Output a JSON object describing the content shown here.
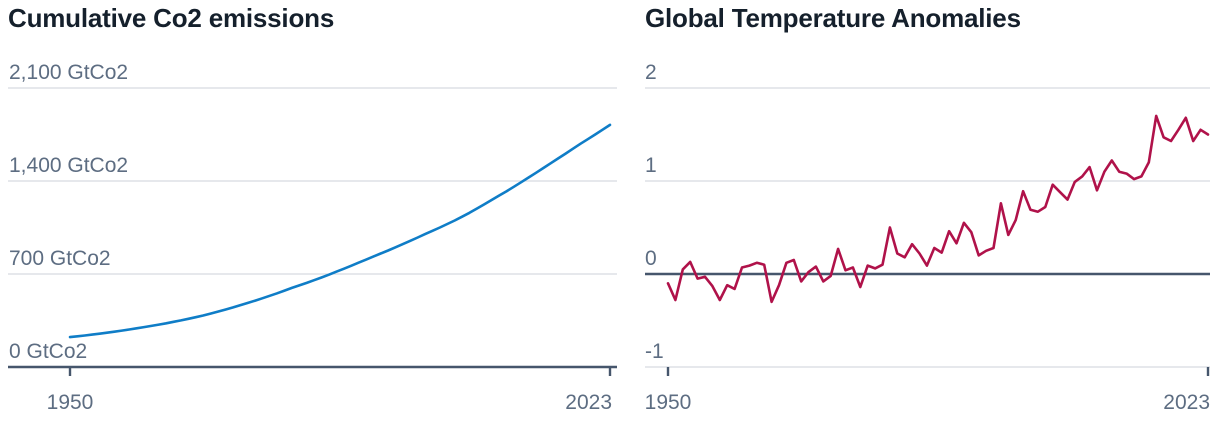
{
  "figure": {
    "background": "#ffffff"
  },
  "chart_data": [
    {
      "type": "line",
      "title": "Cumulative Co2 emissions",
      "xlabel": "",
      "ylabel": "GtCo2",
      "line_color": "#0f7dc7",
      "grid": "horizontal",
      "legend": "none",
      "xlim": [
        1950,
        2023
      ],
      "ylim": [
        0,
        2100
      ],
      "baseline": 0,
      "y_ticks": {
        "values": [
          2100,
          1400,
          700,
          0
        ],
        "labels": [
          "2,100 GtCo2",
          "1,400 GtCo2",
          "700 GtCo2",
          "0 GtCo2"
        ]
      },
      "x_ticks": {
        "values": [
          1950,
          2023
        ],
        "labels": [
          "1950",
          "2023"
        ]
      },
      "years": [
        1950,
        1951,
        1952,
        1953,
        1954,
        1955,
        1956,
        1957,
        1958,
        1959,
        1960,
        1961,
        1962,
        1963,
        1964,
        1965,
        1966,
        1967,
        1968,
        1969,
        1970,
        1971,
        1972,
        1973,
        1974,
        1975,
        1976,
        1977,
        1978,
        1979,
        1980,
        1981,
        1982,
        1983,
        1984,
        1985,
        1986,
        1987,
        1988,
        1989,
        1990,
        1991,
        1992,
        1993,
        1994,
        1995,
        1996,
        1997,
        1998,
        1999,
        2000,
        2001,
        2002,
        2003,
        2004,
        2005,
        2006,
        2007,
        2008,
        2009,
        2010,
        2011,
        2012,
        2013,
        2014,
        2015,
        2016,
        2017,
        2018,
        2019,
        2020,
        2021,
        2022,
        2023
      ],
      "values": [
        225,
        231,
        237,
        244,
        251,
        258,
        266,
        274,
        282,
        291,
        300,
        309,
        319,
        329,
        340,
        351,
        363,
        375,
        388,
        402,
        417,
        432,
        448,
        465,
        482,
        499,
        517,
        536,
        555,
        575,
        595,
        614,
        633,
        653,
        674,
        695,
        717,
        739,
        762,
        785,
        808,
        831,
        854,
        877,
        901,
        925,
        950,
        975,
        1000,
        1025,
        1050,
        1076,
        1103,
        1131,
        1161,
        1192,
        1224,
        1257,
        1290,
        1322,
        1356,
        1391,
        1426,
        1462,
        1498,
        1534,
        1570,
        1606,
        1643,
        1680,
        1715,
        1750,
        1786,
        1822
      ]
    },
    {
      "type": "line",
      "title": "Global Temperature Anomalies",
      "xlabel": "",
      "ylabel": "",
      "line_color": "#b0124a",
      "grid": "horizontal",
      "legend": "none",
      "xlim": [
        1950,
        2023
      ],
      "ylim": [
        -1,
        2
      ],
      "baseline": 0,
      "y_ticks": {
        "values": [
          2,
          1,
          0,
          -1
        ],
        "labels": [
          "2",
          "1",
          "0",
          "-1"
        ]
      },
      "x_ticks": {
        "values": [
          1950,
          2023
        ],
        "labels": [
          "1950",
          "2023"
        ]
      },
      "years": [
        1950,
        1951,
        1952,
        1953,
        1954,
        1955,
        1956,
        1957,
        1958,
        1959,
        1960,
        1961,
        1962,
        1963,
        1964,
        1965,
        1966,
        1967,
        1968,
        1969,
        1970,
        1971,
        1972,
        1973,
        1974,
        1975,
        1976,
        1977,
        1978,
        1979,
        1980,
        1981,
        1982,
        1983,
        1984,
        1985,
        1986,
        1987,
        1988,
        1989,
        1990,
        1991,
        1992,
        1993,
        1994,
        1995,
        1996,
        1997,
        1998,
        1999,
        2000,
        2001,
        2002,
        2003,
        2004,
        2005,
        2006,
        2007,
        2008,
        2009,
        2010,
        2011,
        2012,
        2013,
        2014,
        2015,
        2016,
        2017,
        2018,
        2019,
        2020,
        2021,
        2022,
        2023
      ],
      "values": [
        -0.1,
        -0.28,
        0.05,
        0.13,
        -0.05,
        -0.03,
        -0.13,
        -0.28,
        -0.12,
        -0.16,
        0.07,
        0.09,
        0.12,
        0.1,
        -0.3,
        -0.12,
        0.12,
        0.15,
        -0.08,
        0.02,
        0.08,
        -0.08,
        -0.02,
        0.27,
        0.04,
        0.07,
        -0.14,
        0.09,
        0.06,
        0.1,
        0.5,
        0.22,
        0.18,
        0.32,
        0.22,
        0.09,
        0.28,
        0.23,
        0.46,
        0.33,
        0.55,
        0.45,
        0.2,
        0.25,
        0.28,
        0.76,
        0.42,
        0.58,
        0.89,
        0.69,
        0.67,
        0.72,
        0.96,
        0.88,
        0.8,
        0.99,
        1.05,
        1.15,
        0.9,
        1.1,
        1.22,
        1.1,
        1.08,
        1.02,
        1.05,
        1.2,
        1.7,
        1.47,
        1.43,
        1.55,
        1.68,
        1.43,
        1.55,
        1.5
      ]
    }
  ]
}
